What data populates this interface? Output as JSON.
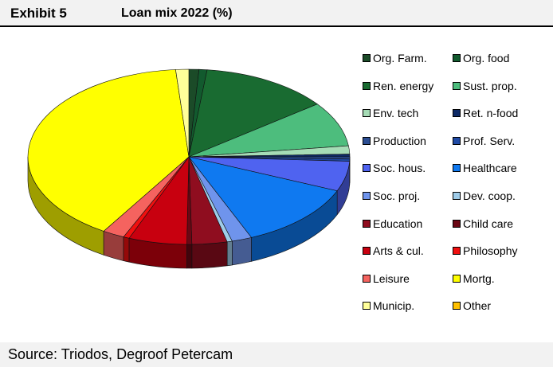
{
  "header": {
    "exhibit_label": "Exhibit 5",
    "title": "Loan mix 2022 (%)"
  },
  "footer": {
    "source": "Source: Triodos, Degroof Petercam"
  },
  "chart_data": {
    "type": "pie",
    "title": "Loan mix 2022 (%)",
    "legend_position": "right",
    "three_d": true,
    "slices": [
      {
        "name": "Org. Farm.",
        "value": 1.0,
        "color": "#1b4b28"
      },
      {
        "name": "Org. food",
        "value": 0.8,
        "color": "#125a2e"
      },
      {
        "name": "Ren. energy",
        "value": 12.8,
        "color": "#196b31"
      },
      {
        "name": "Sust. prop.",
        "value": 8.2,
        "color": "#4dbd7d"
      },
      {
        "name": "Env. tech",
        "value": 1.5,
        "color": "#a6dcb6"
      },
      {
        "name": "Ret. n-food",
        "value": 0.5,
        "color": "#0e2a66"
      },
      {
        "name": "Production",
        "value": 0.4,
        "color": "#2b4d92"
      },
      {
        "name": "Prof. Serv.",
        "value": 0.4,
        "color": "#1f4aa5"
      },
      {
        "name": "Soc. hous.",
        "value": 5.5,
        "color": "#4f63f0"
      },
      {
        "name": "Healthcare",
        "value": 12.2,
        "color": "#0f79f0"
      },
      {
        "name": "Soc. proj.",
        "value": 2.0,
        "color": "#6f94ec"
      },
      {
        "name": "Dev. coop.",
        "value": 0.5,
        "color": "#9fcce9"
      },
      {
        "name": "Education",
        "value": 3.5,
        "color": "#8f0d1f"
      },
      {
        "name": "Child care",
        "value": 0.5,
        "color": "#6b0714"
      },
      {
        "name": "Arts & cul.",
        "value": 5.8,
        "color": "#c8000f"
      },
      {
        "name": "Philosophy",
        "value": 0.6,
        "color": "#f00f0f"
      },
      {
        "name": "Leisure",
        "value": 2.2,
        "color": "#f5635f"
      },
      {
        "name": "Mortg.",
        "value": 39.5,
        "color": "#ffff00"
      },
      {
        "name": "Municip.",
        "value": 1.3,
        "color": "#ffff9a"
      },
      {
        "name": "Other",
        "value": 0.0,
        "color": "#ffc000"
      }
    ]
  }
}
